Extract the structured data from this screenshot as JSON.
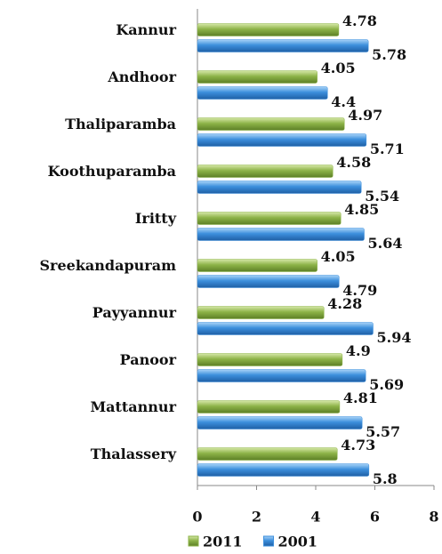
{
  "chart_data": {
    "type": "bar",
    "orientation": "horizontal",
    "categories": [
      "Kannur",
      "Andhoor",
      "Thaliparamba",
      "Koothuparamba",
      "Iritty",
      "Sreekandapuram",
      "Payyannur",
      "Panoor",
      "Mattannur",
      "Thalassery"
    ],
    "series": [
      {
        "name": "2011",
        "color": "#8db348",
        "values": [
          4.78,
          4.05,
          4.97,
          4.58,
          4.85,
          4.05,
          4.28,
          4.9,
          4.81,
          4.73
        ]
      },
      {
        "name": "2001",
        "color": "#3c8fdc",
        "values": [
          5.78,
          4.4,
          5.71,
          5.54,
          5.64,
          4.79,
          5.94,
          5.69,
          5.57,
          5.8
        ]
      }
    ],
    "xlim": [
      0,
      8
    ],
    "xticks": [
      0,
      2,
      4,
      6,
      8
    ],
    "legend": "bottom"
  }
}
